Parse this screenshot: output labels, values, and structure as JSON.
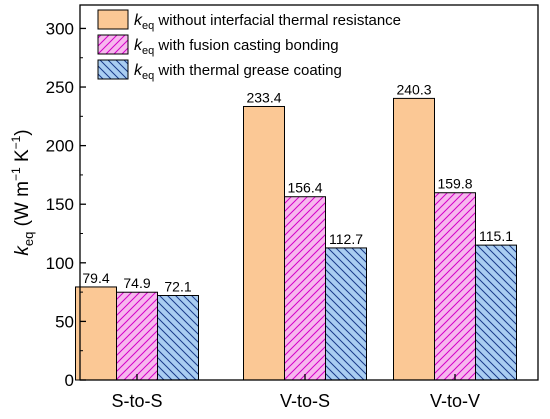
{
  "chart_data": {
    "type": "bar",
    "categories": [
      "S-to-S",
      "V-to-S",
      "V-to-V"
    ],
    "series": [
      {
        "name_sym": "k",
        "name_sub": "eq",
        "name_rest": " without interfacial thermal resistance",
        "values": [
          79.4,
          233.4,
          240.3
        ],
        "fill": "#fbc895",
        "pattern": "none"
      },
      {
        "name_sym": "k",
        "name_sub": "eq",
        "name_rest": " with fusion casting bonding",
        "values": [
          74.9,
          156.4,
          159.8
        ],
        "fill": "#f7b7ee",
        "pattern": "hatch-right",
        "hatch_color": "#d400c8"
      },
      {
        "name_sym": "k",
        "name_sub": "eq",
        "name_rest": " with thermal grease coating",
        "values": [
          72.1,
          112.7,
          115.1
        ],
        "fill": "#a9cdf1",
        "pattern": "hatch-left",
        "hatch_color": "#1a3b8a"
      }
    ],
    "data_labels": [
      [
        "79.4",
        "233.4",
        "240.3"
      ],
      [
        "74.9",
        "156.4",
        "159.8"
      ],
      [
        "72.1",
        "112.7",
        "115.1"
      ]
    ],
    "ylabel": {
      "sym": "k",
      "sub": "eq",
      "units_open": " (W m",
      "exp1": "−1",
      "units_mid": " K",
      "exp2": "−1",
      "units_close": ")"
    },
    "ylim": [
      0,
      320
    ],
    "yticks": [
      0,
      50,
      100,
      150,
      200,
      250,
      300
    ],
    "ytick_labels": [
      "0",
      "50",
      "100",
      "150",
      "200",
      "250",
      "300"
    ],
    "legend_position": "top-left",
    "grid": false
  }
}
